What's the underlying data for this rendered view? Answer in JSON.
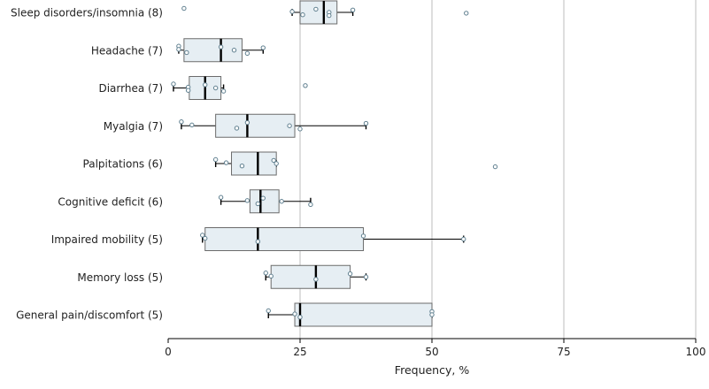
{
  "chart_data": {
    "type": "boxplot",
    "xlabel": "Frequency, %",
    "xlim": [
      0,
      100
    ],
    "xticks": [
      0,
      25,
      50,
      75,
      100
    ],
    "tick_labels": [
      "0",
      "25",
      "50",
      "75",
      "100"
    ],
    "grid": "vertical",
    "colors": {
      "box_fill": "#e6eef3",
      "box_stroke": "#6b6b6b",
      "point": "#5f7f8f",
      "grid": "#c8c8c8",
      "median": "#000000"
    },
    "categories": [
      "Sleep disorders/insomnia (8)",
      "Headache (7)",
      "Diarrhea (7)",
      "Myalgia (7)",
      "Palpitations (6)",
      "Cognitive deficit (6)",
      "Impaired mobility (5)",
      "Memory loss (5)",
      "General pain/discomfort (5)"
    ],
    "boxes": [
      {
        "whisker_low": 23.5,
        "q1": 25,
        "median": 29.5,
        "q3": 32,
        "whisker_high": 35,
        "points": [
          3,
          23.5,
          25.5,
          28,
          30.5,
          30.5,
          35,
          56.5
        ]
      },
      {
        "whisker_low": 2,
        "q1": 3,
        "median": 10,
        "q3": 14,
        "whisker_high": 18,
        "points": [
          2,
          2,
          3.5,
          10,
          12.5,
          15,
          18
        ]
      },
      {
        "whisker_low": 1,
        "q1": 4,
        "median": 7,
        "q3": 10,
        "whisker_high": 10.5,
        "points": [
          1,
          3.8,
          3.8,
          7,
          9,
          10.5,
          26
        ]
      },
      {
        "whisker_low": 2.5,
        "q1": 9,
        "median": 15,
        "q3": 24,
        "whisker_high": 37.5,
        "points": [
          2.5,
          4.5,
          13,
          15,
          23,
          25,
          37.5
        ]
      },
      {
        "whisker_low": 9,
        "q1": 12,
        "median": 17,
        "q3": 20.5,
        "whisker_high": 20.5,
        "points": [
          9,
          11,
          14,
          20,
          20.5,
          62
        ]
      },
      {
        "whisker_low": 10,
        "q1": 15.5,
        "median": 17.5,
        "q3": 21,
        "whisker_high": 27,
        "points": [
          10,
          15,
          17,
          18,
          21.5,
          27
        ]
      },
      {
        "whisker_low": 6.5,
        "q1": 7,
        "median": 17,
        "q3": 37,
        "whisker_high": 56,
        "points": [
          6.5,
          7,
          17,
          37,
          56
        ]
      },
      {
        "whisker_low": 18.5,
        "q1": 19.5,
        "median": 28,
        "q3": 34.5,
        "whisker_high": 37.5,
        "points": [
          18.5,
          19.5,
          28,
          34.5,
          37.5
        ]
      },
      {
        "whisker_low": 19,
        "q1": 24,
        "median": 25,
        "q3": 50,
        "whisker_high": 50,
        "points": [
          19,
          24,
          25,
          50,
          50
        ]
      }
    ]
  }
}
